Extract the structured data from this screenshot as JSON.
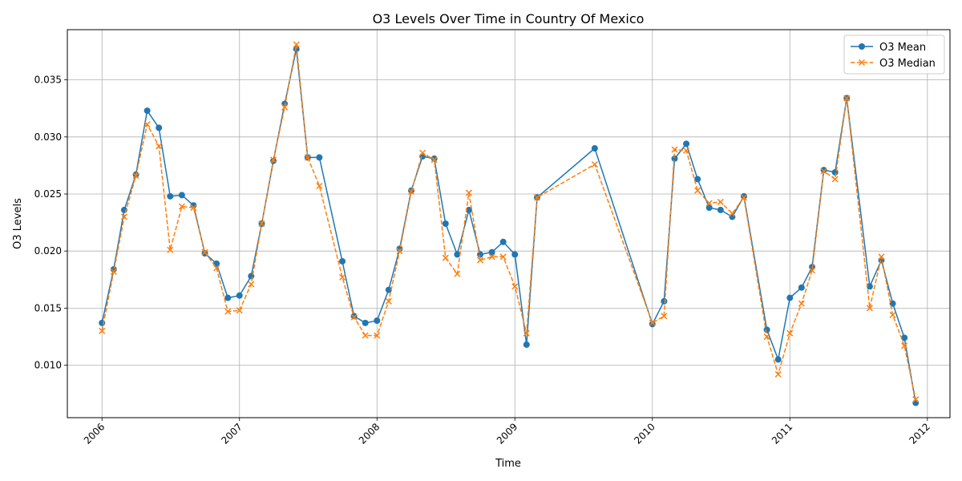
{
  "chart_data": {
    "type": "line",
    "title": "O3 Levels Over Time in Country Of Mexico",
    "xlabel": "Time",
    "ylabel": "O3 Levels",
    "x_tick_labels": [
      "2006",
      "2007",
      "2008",
      "2009",
      "2010",
      "2011",
      "2012"
    ],
    "y_tick_labels": [
      "0.010",
      "0.015",
      "0.020",
      "0.025",
      "0.030",
      "0.035"
    ],
    "y_ticks": [
      0.01,
      0.015,
      0.02,
      0.025,
      0.03,
      0.035
    ],
    "xlim": [
      "2005-10-01",
      "2012-03-01"
    ],
    "ylim": [
      0.0054,
      0.0394
    ],
    "grid": true,
    "legend_position": "upper right",
    "x": [
      "2006-01-01",
      "2006-02-01",
      "2006-03-01",
      "2006-04-01",
      "2006-05-01",
      "2006-06-01",
      "2006-07-01",
      "2006-08-01",
      "2006-09-01",
      "2006-10-01",
      "2006-11-01",
      "2006-12-01",
      "2007-01-01",
      "2007-02-01",
      "2007-03-01",
      "2007-04-01",
      "2007-05-01",
      "2007-06-01",
      "2007-07-01",
      "2007-08-01",
      "2007-10-01",
      "2007-11-01",
      "2007-12-01",
      "2008-01-01",
      "2008-02-01",
      "2008-03-01",
      "2008-04-01",
      "2008-05-01",
      "2008-06-01",
      "2008-07-01",
      "2008-08-01",
      "2008-09-01",
      "2008-10-01",
      "2008-11-01",
      "2008-12-01",
      "2009-01-01",
      "2009-02-01",
      "2009-03-01",
      "2009-08-01",
      "2010-01-01",
      "2010-02-01",
      "2010-03-01",
      "2010-04-01",
      "2010-05-01",
      "2010-06-01",
      "2010-07-01",
      "2010-08-01",
      "2010-09-01",
      "2010-11-01",
      "2010-12-01",
      "2011-01-01",
      "2011-02-01",
      "2011-03-01",
      "2011-04-01",
      "2011-05-01",
      "2011-06-01",
      "2011-08-01",
      "2011-09-01",
      "2011-10-01",
      "2011-11-01",
      "2011-12-01"
    ],
    "series": [
      {
        "name": "O3 Mean",
        "color": "#1f77b4",
        "style": "solid",
        "marker": "circle",
        "values": [
          0.0137,
          0.0184,
          0.0236,
          0.0267,
          0.0323,
          0.0308,
          0.0248,
          0.0249,
          0.024,
          0.0198,
          0.0189,
          0.0159,
          0.0161,
          0.0178,
          0.0224,
          0.0279,
          0.0329,
          0.0377,
          0.0282,
          0.0282,
          0.0191,
          0.0143,
          0.0137,
          0.0139,
          0.0166,
          0.0202,
          0.0253,
          0.0283,
          0.0281,
          0.0224,
          0.0197,
          0.0236,
          0.0197,
          0.0199,
          0.0208,
          0.0197,
          0.0118,
          0.0247,
          0.029,
          0.0136,
          0.0156,
          0.0281,
          0.0294,
          0.0263,
          0.0238,
          0.0236,
          0.023,
          0.0248,
          0.0131,
          0.0105,
          0.0159,
          0.0168,
          0.0186,
          0.0271,
          0.0269,
          0.0334,
          0.0169,
          0.0192,
          0.0154,
          0.0124,
          0.0067
        ]
      },
      {
        "name": "O3 Median",
        "color": "#ff7f0e",
        "style": "dashed",
        "marker": "x",
        "values": [
          0.013,
          0.0182,
          0.023,
          0.0266,
          0.0311,
          0.0292,
          0.0201,
          0.0239,
          0.0238,
          0.0199,
          0.0185,
          0.0147,
          0.0148,
          0.0171,
          0.0224,
          0.028,
          0.0326,
          0.0381,
          0.0282,
          0.0257,
          0.0177,
          0.0142,
          0.0126,
          0.0126,
          0.0156,
          0.02,
          0.0252,
          0.0286,
          0.028,
          0.0194,
          0.018,
          0.0251,
          0.0192,
          0.0195,
          0.0195,
          0.0169,
          0.0128,
          0.0247,
          0.0276,
          0.0137,
          0.0143,
          0.0289,
          0.0288,
          0.0253,
          0.0242,
          0.0243,
          0.0233,
          0.0247,
          0.0125,
          0.0092,
          0.0128,
          0.0154,
          0.0183,
          0.027,
          0.0263,
          0.0334,
          0.015,
          0.0195,
          0.0144,
          0.0117,
          0.007
        ]
      }
    ]
  }
}
